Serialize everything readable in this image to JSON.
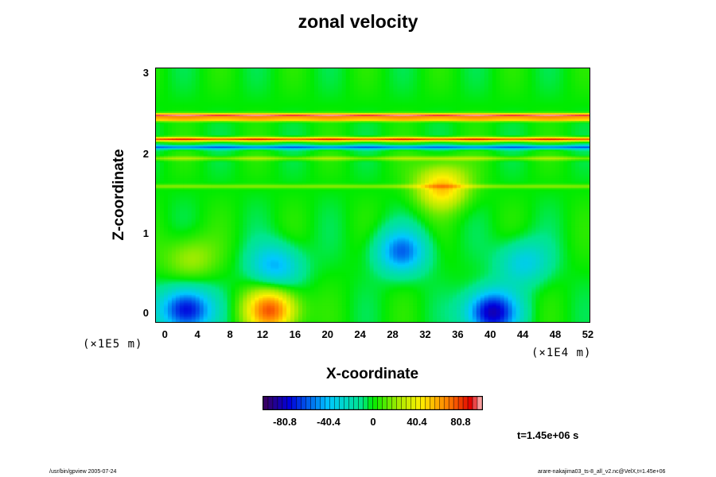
{
  "chart_data": {
    "type": "heatmap",
    "title": "zonal velocity",
    "xlabel": "X-coordinate",
    "ylabel": "Z-coordinate",
    "x_unit": "(×1E4 m)",
    "y_unit": "(×1E5 m)",
    "x_ticks": [
      "0",
      "4",
      "8",
      "12",
      "16",
      "20",
      "24",
      "28",
      "32",
      "36",
      "40",
      "44",
      "48",
      "52"
    ],
    "y_ticks": [
      "0",
      "1",
      "2",
      "3"
    ],
    "xlim": [
      -1.2,
      52.3
    ],
    "ylim": [
      -0.12,
      3.08
    ],
    "colorbar": {
      "ticks": [
        "-80.8",
        "-40.4",
        "0",
        "40.4",
        "80.8"
      ],
      "range": [
        -101,
        101
      ]
    },
    "time_label": "t=1.45e+06 s",
    "features": [
      {
        "kind": "band",
        "z": 2.49,
        "value": 95
      },
      {
        "kind": "band",
        "z": 2.44,
        "value": 60
      },
      {
        "kind": "band",
        "z": 2.19,
        "value": 80
      },
      {
        "kind": "band",
        "z": 2.09,
        "value": -55
      },
      {
        "kind": "band",
        "z": 1.95,
        "value": 22
      },
      {
        "kind": "band",
        "z": 1.6,
        "value": 20
      },
      {
        "kind": "blob",
        "x": 2.5,
        "z": 0.05,
        "value": -80
      },
      {
        "kind": "blob",
        "x": 13,
        "z": 0.05,
        "value": 75
      },
      {
        "kind": "blob",
        "x": 13.5,
        "z": 0.6,
        "value": -45
      },
      {
        "kind": "blob",
        "x": 29,
        "z": 0.78,
        "value": -55
      },
      {
        "kind": "blob",
        "x": 40,
        "z": 0.02,
        "value": -85
      },
      {
        "kind": "blob",
        "x": 34,
        "z": 1.6,
        "value": 55
      },
      {
        "kind": "blob",
        "x": 44,
        "z": 0.65,
        "value": -35
      },
      {
        "kind": "blob",
        "x": 3,
        "z": 0.7,
        "value": 25
      }
    ]
  },
  "footer": {
    "left": "/usr/bin/gpview 2005-07-24",
    "right": "arare-nakajima03_ts-8_all_v2.nc@VelX,t=1.45e+06"
  }
}
